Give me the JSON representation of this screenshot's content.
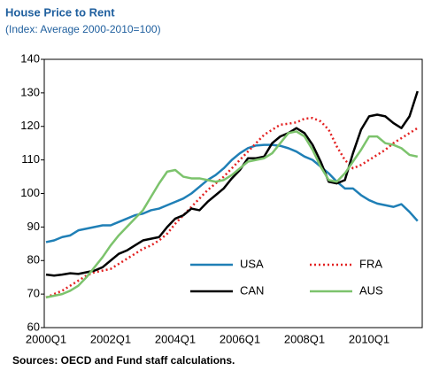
{
  "chart_data": {
    "type": "line",
    "title": "House Price to Rent",
    "subtitle": "(Index: Average 2000-2010=100)",
    "source": "Sources: OECD and Fund staff calculations.",
    "categories": [
      "2000Q1",
      null,
      null,
      null,
      null,
      null,
      null,
      null,
      "2002Q1",
      null,
      null,
      null,
      null,
      null,
      null,
      null,
      "2004Q1",
      null,
      null,
      null,
      null,
      null,
      null,
      null,
      "2006Q1",
      null,
      null,
      null,
      null,
      null,
      null,
      null,
      "2008Q1",
      null,
      null,
      null,
      null,
      null,
      null,
      null,
      "2010Q1",
      null,
      null,
      null,
      null,
      null,
      null
    ],
    "series": [
      {
        "name": "USA",
        "color": "#1f7fb6",
        "style": "solid",
        "values": [
          85.5,
          86,
          87,
          87.5,
          89,
          89.5,
          90,
          90.5,
          90.5,
          91.5,
          92.5,
          93.5,
          94,
          95,
          95.5,
          96.5,
          97.5,
          98.5,
          100,
          102,
          104,
          105.5,
          107.5,
          110,
          112,
          113.5,
          114.3,
          114.5,
          114.5,
          114.2,
          113.5,
          112.5,
          111,
          110,
          108,
          106,
          103.5,
          101.5,
          101.5,
          99.5,
          98,
          97,
          96.5,
          96,
          96.8,
          94.5,
          91.8
        ]
      },
      {
        "name": "FRA",
        "color": "#e32121",
        "style": "dotted",
        "values": [
          69,
          70,
          71,
          72.5,
          74,
          75.5,
          76.5,
          77,
          77.5,
          79,
          80.5,
          82,
          83.5,
          84.5,
          86,
          88,
          91,
          93.5,
          96,
          98.5,
          101,
          103,
          105,
          107.5,
          110,
          112.5,
          115,
          117.5,
          119,
          120.5,
          120.8,
          121.2,
          122.3,
          122.5,
          121.5,
          119,
          114,
          110,
          107.5,
          108.5,
          110,
          111.5,
          113,
          115,
          116.5,
          118,
          119.5
        ]
      },
      {
        "name": "CAN",
        "color": "#000000",
        "style": "solid",
        "values": [
          75.8,
          75.5,
          75.8,
          76.2,
          76,
          76.5,
          77,
          78,
          80,
          82,
          83,
          84.5,
          86,
          86.5,
          87,
          90,
          92.5,
          93.5,
          95.5,
          95,
          97.5,
          99.5,
          101.5,
          104.5,
          107,
          110.5,
          110.5,
          111,
          115,
          117,
          118,
          119.5,
          118,
          114.5,
          109.5,
          103.5,
          103,
          104,
          112,
          119,
          123,
          123.5,
          123,
          121,
          119.5,
          123,
          130.5
        ]
      },
      {
        "name": "AUS",
        "color": "#7cc36c",
        "style": "solid",
        "values": [
          69,
          69.5,
          70,
          71,
          72.5,
          75,
          78,
          81,
          84.5,
          87.5,
          90,
          92.5,
          95,
          99,
          103,
          106.5,
          107,
          105,
          104.5,
          104.5,
          104,
          103.5,
          104,
          105.5,
          107.5,
          109.5,
          110,
          110.5,
          112,
          115,
          118,
          118.5,
          117,
          113,
          108,
          104,
          103.5,
          106,
          109.5,
          113,
          117,
          117,
          115,
          114.5,
          113.5,
          111.5,
          111
        ]
      }
    ],
    "ylim": [
      60,
      140
    ],
    "yticks": [
      60,
      70,
      80,
      90,
      100,
      110,
      120,
      130,
      140
    ],
    "grid": false,
    "legend": "lower right"
  }
}
